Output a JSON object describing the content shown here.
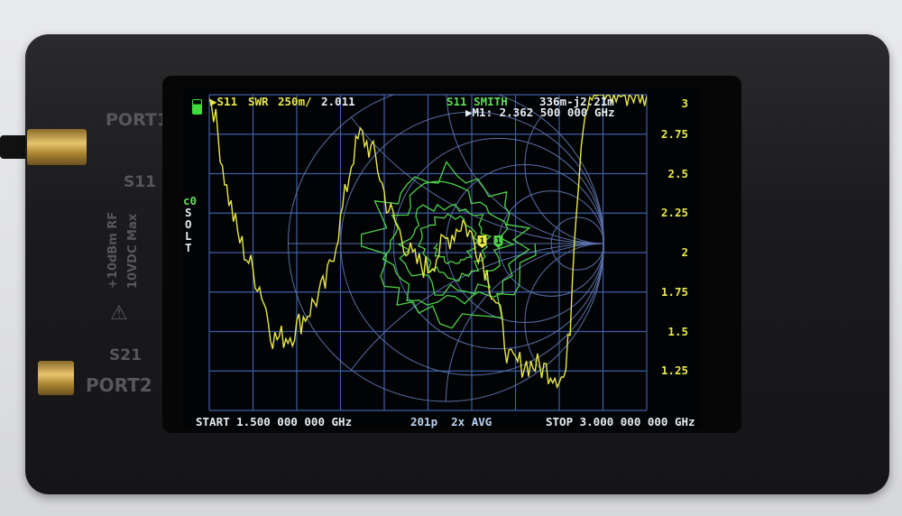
{
  "device_labels": {
    "port1": "PORT1",
    "s11": "S11",
    "rf_limit": "+10dBm RF",
    "dc_limit": "10VDC Max",
    "s21": "S21",
    "port2": "PORT2"
  },
  "screen": {
    "trace1_marker": "▶S11",
    "trace1_format": "SWR",
    "trace1_scale": "250m/",
    "trace1_value": "2.011",
    "trace2_label": "S11 SMITH",
    "trace2_value": "336m-j2.21m",
    "marker_readout": "▶M1: 2.362 500 000 GHz",
    "cal_slot": "c0",
    "cal_type": [
      "S",
      "O",
      "L",
      "T"
    ],
    "start": "START 1.500 000 000 GHz",
    "points_avg": "201p  2x AVG",
    "stop": "STOP 3.000 000 000 GHz",
    "marker_label": "1"
  },
  "colors": {
    "swr_trace": "#e8e84a",
    "smith_trace": "#4fd04a",
    "grid": "#3f5fa8",
    "smith_grid": "#5a6fa8",
    "battery": "#3ddc3d"
  },
  "chart_data": {
    "type": "line",
    "xlim": [
      1.5,
      3.0
    ],
    "ylim": [
      1,
      3
    ],
    "y_tick_labels": [
      "3",
      "2.75",
      "2.5",
      "2.25",
      "2",
      "1.75",
      "1.5",
      "1.25"
    ],
    "grid": true,
    "series": [
      {
        "name": "S11 SWR",
        "x": [
          1.51,
          1.56,
          1.6,
          1.68,
          1.72,
          1.78,
          1.84,
          1.9,
          1.95,
          1.99,
          2.02,
          2.07,
          2.11,
          2.16,
          2.2,
          2.25,
          2.31,
          2.37,
          2.43,
          2.49,
          2.53,
          2.61,
          2.67,
          2.72,
          2.74,
          2.75,
          2.77,
          2.78,
          2.8
        ],
        "y": [
          2.97,
          2.4,
          2.1,
          1.75,
          1.45,
          1.48,
          1.63,
          1.8,
          2.2,
          2.6,
          2.75,
          2.6,
          2.3,
          2.1,
          1.95,
          1.9,
          2.07,
          2.2,
          2.0,
          1.65,
          1.3,
          1.29,
          1.25,
          1.2,
          1.6,
          2.1,
          2.57,
          2.83,
          3.0
        ]
      }
    ]
  }
}
